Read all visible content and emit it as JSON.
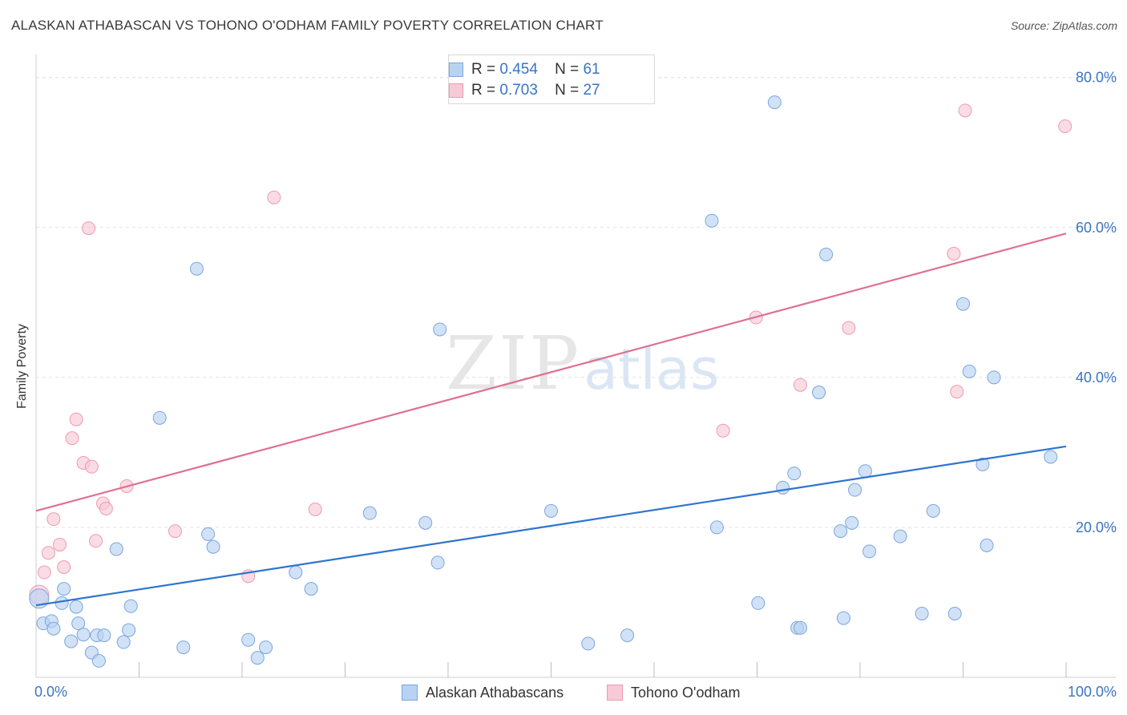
{
  "title": "ALASKAN ATHABASCAN VS TOHONO O'ODHAM FAMILY POVERTY CORRELATION CHART",
  "source": "Source: ZipAtlas.com",
  "watermark": {
    "zip": "ZIP",
    "atlas": "atlas"
  },
  "legend": {
    "rows": [
      {
        "r_label": "R =",
        "r_value": "0.454",
        "n_label": "N =",
        "n_value": "61"
      },
      {
        "r_label": "R =",
        "r_value": "0.703",
        "n_label": "N =",
        "n_value": "27"
      }
    ]
  },
  "colors": {
    "blue_fill": "#b8d3f2",
    "blue_stroke": "#7aa6dd",
    "blue_line": "#2f74cf",
    "pink_fill": "#f8c9d6",
    "pink_stroke": "#ee9ab2",
    "pink_line": "#e0708f",
    "tick_text": "#3a74c4",
    "grid": "#e2e2e2"
  },
  "chart_data": {
    "type": "scatter",
    "title": "ALASKAN ATHABASCAN VS TOHONO O'ODHAM FAMILY POVERTY CORRELATION CHART",
    "xlabel": "",
    "ylabel": "Family Poverty",
    "xlim": [
      0,
      100
    ],
    "ylim": [
      0,
      82
    ],
    "x_tick_labels": [
      "0.0%",
      "100.0%"
    ],
    "y_ticks": [
      20,
      40,
      60,
      80
    ],
    "y_tick_labels": [
      "20.0%",
      "40.0%",
      "60.0%",
      "80.0%"
    ],
    "legend_position": "top-center",
    "series": [
      {
        "name": "Alaskan Athabascans",
        "color": "#b8d3f2",
        "r": 0.454,
        "n": 61,
        "trend": {
          "x": [
            0,
            100
          ],
          "y": [
            9.6,
            30.8
          ]
        },
        "points": [
          [
            0.3,
            10.5
          ],
          [
            0.7,
            7.2
          ],
          [
            1.5,
            7.5
          ],
          [
            1.7,
            6.5
          ],
          [
            2.5,
            9.9
          ],
          [
            2.7,
            11.8
          ],
          [
            3.4,
            4.8
          ],
          [
            3.9,
            9.4
          ],
          [
            4.1,
            7.2
          ],
          [
            4.6,
            5.7
          ],
          [
            5.4,
            3.3
          ],
          [
            5.9,
            5.6
          ],
          [
            6.1,
            2.2
          ],
          [
            6.6,
            5.6
          ],
          [
            7.8,
            17.1
          ],
          [
            8.5,
            4.7
          ],
          [
            9.0,
            6.3
          ],
          [
            9.2,
            9.5
          ],
          [
            12.0,
            34.6
          ],
          [
            14.3,
            4.0
          ],
          [
            15.6,
            54.5
          ],
          [
            16.7,
            19.1
          ],
          [
            17.2,
            17.4
          ],
          [
            20.6,
            5.0
          ],
          [
            21.5,
            2.6
          ],
          [
            22.3,
            4.0
          ],
          [
            25.2,
            14.0
          ],
          [
            26.7,
            11.8
          ],
          [
            32.4,
            21.9
          ],
          [
            37.8,
            20.6
          ],
          [
            39.0,
            15.3
          ],
          [
            39.2,
            46.4
          ],
          [
            50.0,
            22.2
          ],
          [
            53.6,
            4.5
          ],
          [
            57.4,
            5.6
          ],
          [
            65.6,
            60.9
          ],
          [
            66.1,
            20.0
          ],
          [
            70.1,
            9.9
          ],
          [
            71.7,
            76.7
          ],
          [
            72.5,
            25.3
          ],
          [
            73.6,
            27.2
          ],
          [
            73.9,
            6.6
          ],
          [
            74.2,
            6.6
          ],
          [
            76.0,
            38.0
          ],
          [
            76.7,
            56.4
          ],
          [
            78.1,
            19.5
          ],
          [
            78.4,
            7.9
          ],
          [
            79.2,
            20.6
          ],
          [
            79.5,
            25.0
          ],
          [
            80.5,
            27.5
          ],
          [
            80.9,
            16.8
          ],
          [
            83.9,
            18.8
          ],
          [
            86.0,
            8.5
          ],
          [
            87.1,
            22.2
          ],
          [
            89.2,
            8.5
          ],
          [
            90.0,
            49.8
          ],
          [
            90.6,
            40.8
          ],
          [
            91.9,
            28.4
          ],
          [
            92.3,
            17.6
          ],
          [
            93.0,
            40.0
          ],
          [
            98.5,
            29.4
          ]
        ]
      },
      {
        "name": "Tohono O'odham",
        "color": "#f8c9d6",
        "r": 0.703,
        "n": 27,
        "trend": {
          "x": [
            0,
            100
          ],
          "y": [
            22.2,
            59.2
          ]
        },
        "points": [
          [
            0.3,
            11.0
          ],
          [
            0.8,
            14.0
          ],
          [
            1.2,
            16.6
          ],
          [
            1.7,
            21.1
          ],
          [
            2.3,
            17.7
          ],
          [
            2.7,
            14.7
          ],
          [
            3.5,
            31.9
          ],
          [
            3.9,
            34.4
          ],
          [
            4.6,
            28.6
          ],
          [
            5.1,
            59.9
          ],
          [
            5.4,
            28.1
          ],
          [
            5.8,
            18.2
          ],
          [
            6.5,
            23.2
          ],
          [
            6.8,
            22.5
          ],
          [
            8.8,
            25.5
          ],
          [
            13.5,
            19.5
          ],
          [
            20.6,
            13.5
          ],
          [
            23.1,
            64.0
          ],
          [
            27.1,
            22.4
          ],
          [
            66.7,
            32.9
          ],
          [
            69.9,
            48.0
          ],
          [
            74.2,
            39.0
          ],
          [
            78.9,
            46.6
          ],
          [
            89.1,
            56.5
          ],
          [
            89.4,
            38.1
          ],
          [
            90.2,
            75.6
          ],
          [
            99.9,
            73.5
          ]
        ]
      }
    ]
  }
}
